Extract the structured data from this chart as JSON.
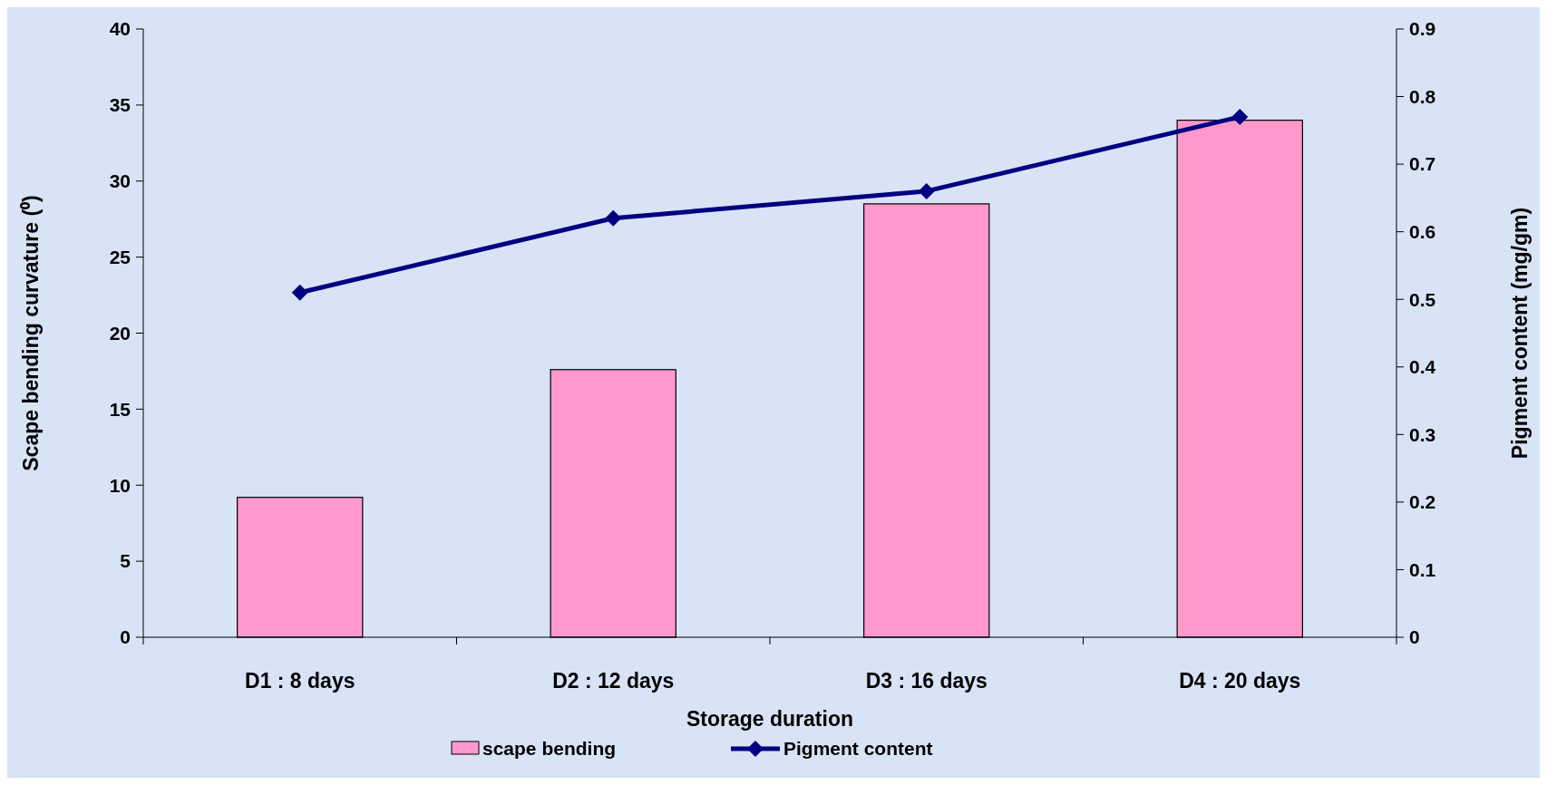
{
  "chart_data": {
    "type": "bar",
    "xlabel": "Storage duration",
    "ylabel": "Scape bending curvature (⁰)",
    "y2label": "Pigment content (mg/gm)",
    "categories": [
      "D1 : 8 days",
      "D2 : 12 days",
      "D3 : 16 days",
      "D4 : 20 days"
    ],
    "series": [
      {
        "name": "scape bending",
        "color": "#ff99cc",
        "values": [
          9.2,
          17.6,
          28.5,
          34.0
        ]
      },
      {
        "name": "Pigment content",
        "type": "line",
        "axis": "y2",
        "color": "#000080",
        "values": [
          0.51,
          0.62,
          0.66,
          0.77
        ]
      }
    ],
    "ylim": [
      0,
      40
    ],
    "yticks": [
      0,
      5,
      10,
      15,
      20,
      25,
      30,
      35,
      40
    ],
    "y2lim": [
      0,
      0.9
    ],
    "y2ticks": [
      0,
      0.1,
      0.2,
      0.3,
      0.4,
      0.5,
      0.6,
      0.7,
      0.8,
      0.9
    ],
    "marker": "diamond",
    "grid": false,
    "legend": "bottom"
  }
}
